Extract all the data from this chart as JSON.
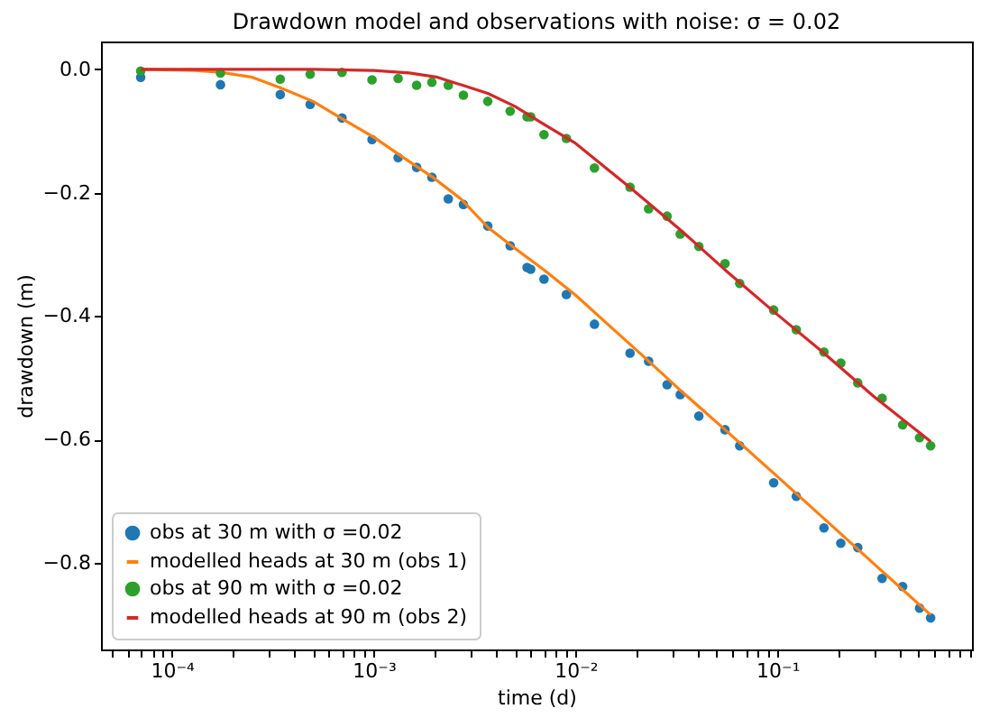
{
  "chart_data": {
    "type": "scatter",
    "title": "Drawdown model and observations with noise: σ = 0.02",
    "xlabel": "time (d)",
    "ylabel": "drawdown (m)",
    "log": "x",
    "grid": false,
    "legend": "bottom left",
    "xlim": [
      4.45e-05,
      0.92
    ],
    "ylim": [
      -0.94,
      0.045
    ],
    "xticks": [
      {
        "value": 0.0001,
        "label": "10⁻⁴"
      },
      {
        "value": 0.001,
        "label": "10⁻³"
      },
      {
        "value": 0.01,
        "label": "10⁻²"
      },
      {
        "value": 0.1,
        "label": "10⁻¹"
      },
      {
        "value": 5e-05,
        "label": null
      },
      {
        "value": 6e-05,
        "label": null
      },
      {
        "value": 7e-05,
        "label": null
      },
      {
        "value": 8e-05,
        "label": null
      },
      {
        "value": 9e-05,
        "label": null
      },
      {
        "value": 0.0002,
        "label": null
      },
      {
        "value": 0.0003,
        "label": null
      },
      {
        "value": 0.0004,
        "label": null
      },
      {
        "value": 0.0005,
        "label": null
      },
      {
        "value": 0.0006,
        "label": null
      },
      {
        "value": 0.0007,
        "label": null
      },
      {
        "value": 0.0008,
        "label": null
      },
      {
        "value": 0.0009,
        "label": null
      },
      {
        "value": 0.002,
        "label": null
      },
      {
        "value": 0.003,
        "label": null
      },
      {
        "value": 0.004,
        "label": null
      },
      {
        "value": 0.005,
        "label": null
      },
      {
        "value": 0.006,
        "label": null
      },
      {
        "value": 0.007,
        "label": null
      },
      {
        "value": 0.008,
        "label": null
      },
      {
        "value": 0.009,
        "label": null
      },
      {
        "value": 0.02,
        "label": null
      },
      {
        "value": 0.03,
        "label": null
      },
      {
        "value": 0.04,
        "label": null
      },
      {
        "value": 0.05,
        "label": null
      },
      {
        "value": 0.06,
        "label": null
      },
      {
        "value": 0.07,
        "label": null
      },
      {
        "value": 0.08,
        "label": null
      },
      {
        "value": 0.09,
        "label": null
      },
      {
        "value": 0.2,
        "label": null
      },
      {
        "value": 0.3,
        "label": null
      },
      {
        "value": 0.4,
        "label": null
      },
      {
        "value": 0.5,
        "label": null
      },
      {
        "value": 0.6,
        "label": null
      },
      {
        "value": 0.7,
        "label": null
      },
      {
        "value": 0.8,
        "label": null
      },
      {
        "value": 0.9,
        "label": null
      }
    ],
    "yticks": [
      {
        "value": 0,
        "label": "0.0"
      },
      {
        "value": -0.2,
        "label": "−0.2"
      },
      {
        "value": -0.4,
        "label": "−0.4"
      },
      {
        "value": -0.6,
        "label": "−0.6"
      },
      {
        "value": -0.8,
        "label": "−0.8"
      }
    ],
    "series": [
      {
        "name": "obs at 30 m with σ =0.02",
        "marker": "circle",
        "color": "#1f77b4",
        "x": [
          7e-05,
          0.000174,
          0.000344,
          0.000484,
          0.000696,
          0.00098,
          0.00132,
          0.00163,
          0.00194,
          0.00234,
          0.00278,
          0.00367,
          0.00474,
          0.00575,
          0.00599,
          0.00697,
          0.009,
          0.0124,
          0.0186,
          0.023,
          0.0284,
          0.033,
          0.0408,
          0.055,
          0.065,
          0.0958,
          0.124,
          0.17,
          0.206,
          0.25,
          0.33,
          0.417,
          0.506,
          0.574
        ],
        "values": [
          -0.013,
          -0.025,
          -0.041,
          -0.057,
          -0.079,
          -0.114,
          -0.143,
          -0.159,
          -0.175,
          -0.21,
          -0.219,
          -0.254,
          -0.286,
          -0.321,
          -0.324,
          -0.34,
          -0.365,
          -0.413,
          -0.46,
          -0.473,
          -0.511,
          -0.527,
          -0.562,
          -0.584,
          -0.61,
          -0.67,
          -0.692,
          -0.743,
          -0.768,
          -0.775,
          -0.825,
          -0.838,
          -0.873,
          -0.889
        ]
      },
      {
        "name": "modelled heads at 30 m (obs 1)",
        "type": "line",
        "marker": "none",
        "color": "#ff7f0e",
        "x": [
          7e-05,
          0.00013,
          0.000174,
          0.00025,
          0.000344,
          0.0005,
          0.000696,
          0.001,
          0.0014,
          0.00194,
          0.0027,
          0.00367,
          0.005,
          0.00697,
          0.01,
          0.015,
          0.022,
          0.033,
          0.055,
          0.1,
          0.17,
          0.3,
          0.574
        ],
        "values": [
          0,
          -0.002,
          -0.005,
          -0.013,
          -0.03,
          -0.052,
          -0.08,
          -0.11,
          -0.143,
          -0.174,
          -0.21,
          -0.256,
          -0.29,
          -0.325,
          -0.366,
          -0.418,
          -0.467,
          -0.52,
          -0.584,
          -0.66,
          -0.728,
          -0.801,
          -0.884
        ]
      },
      {
        "name": "obs at 90 m with σ =0.02",
        "marker": "circle",
        "color": "#2ca02c",
        "x": [
          7e-05,
          0.000174,
          0.000344,
          0.000484,
          0.000696,
          0.00098,
          0.00132,
          0.00163,
          0.00194,
          0.00234,
          0.00278,
          0.00367,
          0.00474,
          0.00575,
          0.00599,
          0.00697,
          0.009,
          0.0124,
          0.0186,
          0.023,
          0.0284,
          0.033,
          0.0408,
          0.055,
          0.065,
          0.0958,
          0.124,
          0.17,
          0.206,
          0.25,
          0.33,
          0.417,
          0.506,
          0.574
        ],
        "values": [
          -0.003,
          -0.006,
          -0.016,
          -0.008,
          -0.005,
          -0.017,
          -0.015,
          -0.026,
          -0.021,
          -0.026,
          -0.042,
          -0.052,
          -0.068,
          -0.077,
          -0.077,
          -0.106,
          -0.112,
          -0.16,
          -0.191,
          -0.226,
          -0.238,
          -0.267,
          -0.287,
          -0.315,
          -0.347,
          -0.39,
          -0.422,
          -0.458,
          -0.476,
          -0.508,
          -0.533,
          -0.576,
          -0.597,
          -0.61
        ]
      },
      {
        "name": "modelled heads at 90 m (obs 2)",
        "type": "line",
        "marker": "none",
        "color": "#d62728",
        "x": [
          7e-05,
          0.0005,
          0.001,
          0.0015,
          0.00207,
          0.00367,
          0.005,
          0.0068,
          0.01,
          0.0188,
          0.033,
          0.055,
          0.097,
          0.17,
          0.3,
          0.574
        ],
        "values": [
          0,
          0,
          -0.002,
          -0.006,
          -0.013,
          -0.039,
          -0.06,
          -0.087,
          -0.12,
          -0.193,
          -0.26,
          -0.325,
          -0.394,
          -0.46,
          -0.53,
          -0.603
        ]
      }
    ]
  }
}
